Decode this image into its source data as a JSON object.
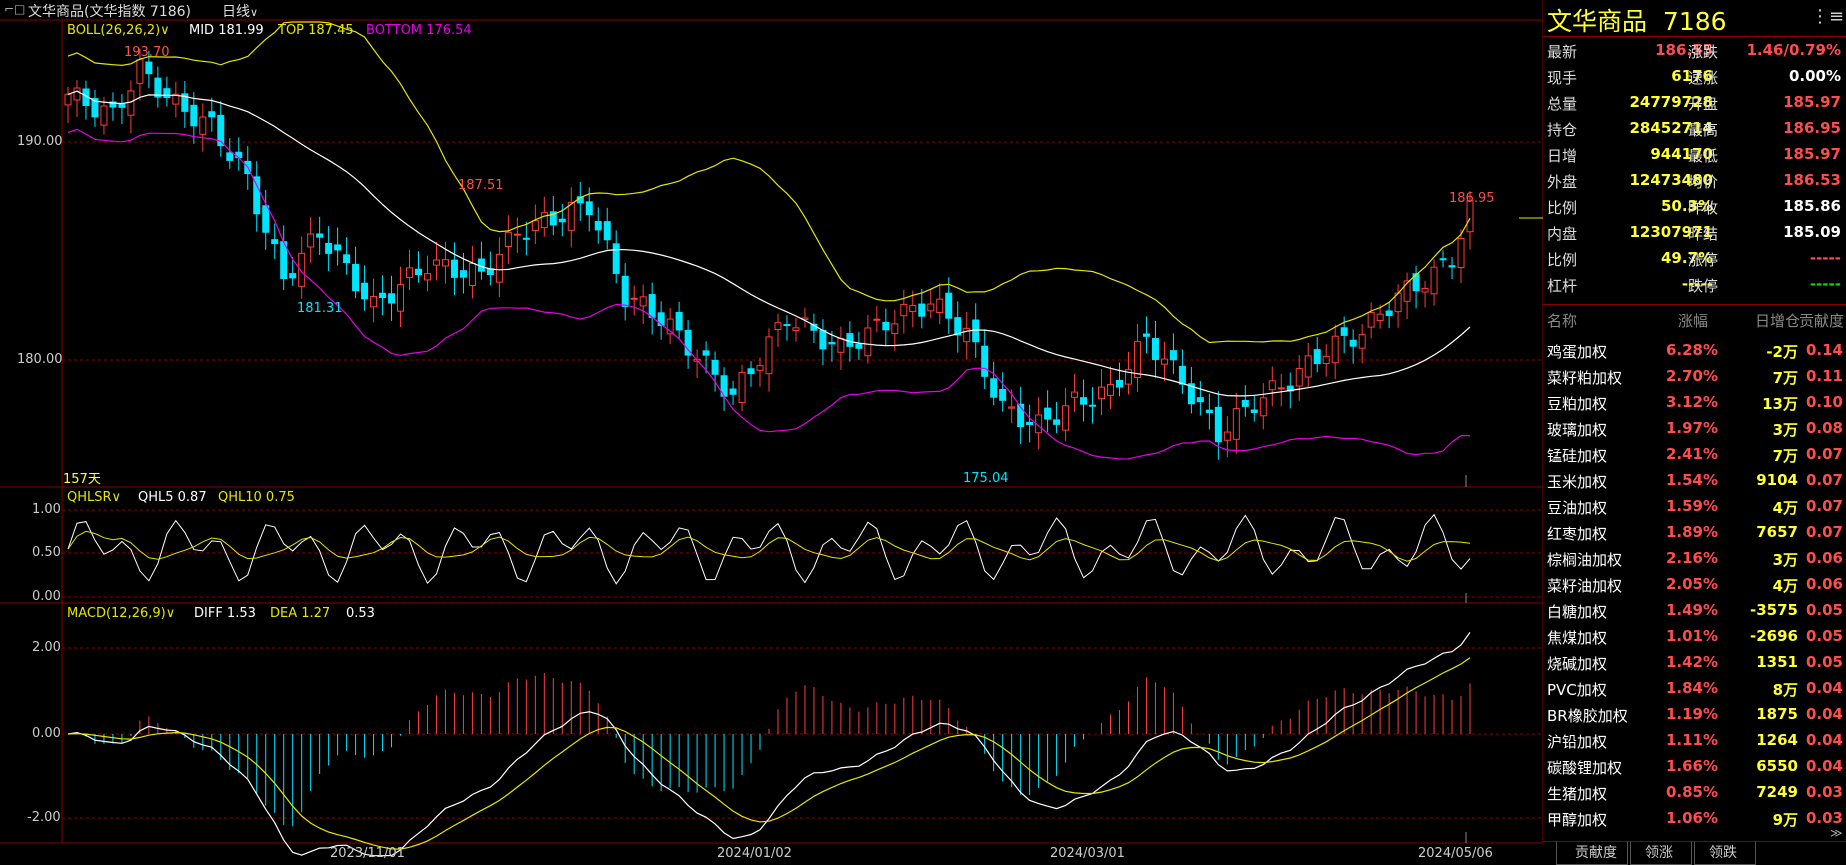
{
  "header": {
    "title": "文华商品(文华指数 7186)",
    "period": "日线",
    "period_arrow": "∨"
  },
  "colors": {
    "up": "#ff3b3b",
    "down": "#00e5ff",
    "mid": "#ffffff",
    "top": "#e6e600",
    "bottom": "#e600e6",
    "label_yellow": "#ffff33",
    "gridline": "#8b0000"
  },
  "boll": {
    "name": "BOLL(26,26,2)",
    "mid_label": "MID 181.99",
    "top_label": "TOP 187.45",
    "bottom_label": "BOTTOM 176.54"
  },
  "qhl": {
    "name": "QHLSR",
    "qhl5_label": "QHL5 0.87",
    "qhl10_label": "QHL10 0.75"
  },
  "macd": {
    "name": "MACD(12,26,9)",
    "diff_label": "DIFF 1.53",
    "dea_label": "DEA 1.27",
    "macd_label": "0.53"
  },
  "annotations": {
    "high1": "193.70",
    "high2": "187.51",
    "high3": "186.95",
    "low1": "181.31",
    "low2": "175.04",
    "days": "157天"
  },
  "y_axis": {
    "main": [
      "190.00",
      "180.00"
    ],
    "qhl": [
      "1.00",
      "0.50",
      "0.00"
    ],
    "macd": [
      "2.00",
      "0.00",
      "-2.00"
    ]
  },
  "x_axis": [
    "2023/11/01",
    "2024/01/02",
    "2024/03/01",
    "2024/05/06"
  ],
  "chart_data": {
    "type": "candlestick",
    "candles": 157,
    "y_range": [
      174,
      195
    ],
    "mid_range": [
      176.5,
      192
    ],
    "last_close": 186.55,
    "high": 186.95,
    "low": 185.97,
    "ma": {
      "mid": 181.99,
      "top": 187.45,
      "bottom": 176.54
    },
    "qhl5": 0.87,
    "qhl10": 0.75,
    "diff": 1.53,
    "dea": 1.27,
    "macd": 0.53
  },
  "quote": {
    "name": "文华商品",
    "code": "7186",
    "menu_icon": "list-icon",
    "rows": [
      {
        "k1": "最新",
        "v1": "186.55",
        "c1": "red",
        "k2": "涨跌",
        "v2": "1.46/0.79%",
        "c2": "red"
      },
      {
        "k1": "现手",
        "v1": "6176",
        "c1": "yellow",
        "k2": "速涨",
        "v2": "0.00%",
        "c2": "white"
      },
      {
        "k1": "总量",
        "v1": "24779728",
        "c1": "yellow",
        "k2": "开盘",
        "v2": "185.97",
        "c2": "red"
      },
      {
        "k1": "持仓",
        "v1": "28452714",
        "c1": "yellow",
        "k2": "最高",
        "v2": "186.95",
        "c2": "red"
      },
      {
        "k1": "日增",
        "v1": "944170",
        "c1": "yellow",
        "k2": "最低",
        "v2": "185.97",
        "c2": "red"
      },
      {
        "k1": "外盘",
        "v1": "12473480",
        "c1": "yellow",
        "k2": "均价",
        "v2": "186.53",
        "c2": "red"
      },
      {
        "k1": "比例",
        "v1": "50.3%",
        "c1": "yellow",
        "k2": "昨收",
        "v2": "185.86",
        "c2": "white"
      },
      {
        "k1": "内盘",
        "v1": "12307971",
        "c1": "yellow",
        "k2": "昨结",
        "v2": "185.09",
        "c2": "white"
      },
      {
        "k1": "比例",
        "v1": "49.7%",
        "c1": "yellow",
        "k2": "涨停",
        "v2": "-----",
        "c2": "red"
      },
      {
        "k1": "杠杆",
        "v1": "-----",
        "c1": "yellow",
        "k2": "跌停",
        "v2": "-----",
        "c2": "green"
      }
    ]
  },
  "contrib": {
    "headers": [
      "名称",
      "涨幅",
      "日增仓",
      "贡献度"
    ],
    "rows": [
      {
        "name": "鸡蛋加权",
        "chg": "6.28%",
        "oi": "-2万",
        "contrib": "0.14"
      },
      {
        "name": "菜籽粕加权",
        "chg": "2.70%",
        "oi": "7万",
        "contrib": "0.11"
      },
      {
        "name": "豆粕加权",
        "chg": "3.12%",
        "oi": "13万",
        "contrib": "0.10"
      },
      {
        "name": "玻璃加权",
        "chg": "1.97%",
        "oi": "3万",
        "contrib": "0.08"
      },
      {
        "name": "锰硅加权",
        "chg": "2.41%",
        "oi": "7万",
        "contrib": "0.07"
      },
      {
        "name": "玉米加权",
        "chg": "1.54%",
        "oi": "9104",
        "contrib": "0.07"
      },
      {
        "name": "豆油加权",
        "chg": "1.59%",
        "oi": "4万",
        "contrib": "0.07"
      },
      {
        "name": "红枣加权",
        "chg": "1.89%",
        "oi": "7657",
        "contrib": "0.07"
      },
      {
        "name": "棕榈油加权",
        "chg": "2.16%",
        "oi": "3万",
        "contrib": "0.06"
      },
      {
        "name": "菜籽油加权",
        "chg": "2.05%",
        "oi": "4万",
        "contrib": "0.06"
      },
      {
        "name": "白糖加权",
        "chg": "1.49%",
        "oi": "-3575",
        "contrib": "0.05"
      },
      {
        "name": "焦煤加权",
        "chg": "1.01%",
        "oi": "-2696",
        "contrib": "0.05"
      },
      {
        "name": "烧碱加权",
        "chg": "1.42%",
        "oi": "1351",
        "contrib": "0.05"
      },
      {
        "name": "PVC加权",
        "chg": "1.84%",
        "oi": "8万",
        "contrib": "0.04"
      },
      {
        "name": "BR橡胶加权",
        "chg": "1.19%",
        "oi": "1875",
        "contrib": "0.04"
      },
      {
        "name": "沪铅加权",
        "chg": "1.11%",
        "oi": "1264",
        "contrib": "0.04"
      },
      {
        "name": "碳酸锂加权",
        "chg": "1.66%",
        "oi": "6550",
        "contrib": "0.04"
      },
      {
        "name": "生猪加权",
        "chg": "0.85%",
        "oi": "7249",
        "contrib": "0.03"
      },
      {
        "name": "甲醇加权",
        "chg": "1.06%",
        "oi": "9万",
        "contrib": "0.03"
      }
    ]
  },
  "tabs": [
    "贡献度",
    "领涨",
    "领跌"
  ]
}
